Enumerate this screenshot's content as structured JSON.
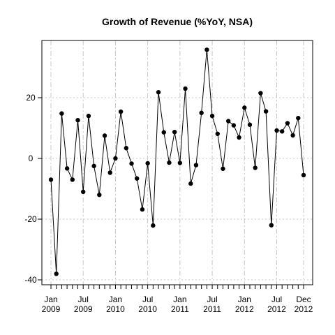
{
  "chart_data": {
    "type": "line",
    "title": "Growth of Revenue (%YoY, NSA)",
    "xlabel": "",
    "ylabel": "",
    "x": [
      "2009-01",
      "2009-02",
      "2009-03",
      "2009-04",
      "2009-05",
      "2009-06",
      "2009-07",
      "2009-08",
      "2009-09",
      "2009-10",
      "2009-11",
      "2009-12",
      "2010-01",
      "2010-02",
      "2010-03",
      "2010-04",
      "2010-05",
      "2010-06",
      "2010-07",
      "2010-08",
      "2010-09",
      "2010-10",
      "2010-11",
      "2010-12",
      "2011-01",
      "2011-02",
      "2011-03",
      "2011-04",
      "2011-05",
      "2011-06",
      "2011-07",
      "2011-08",
      "2011-09",
      "2011-10",
      "2011-11",
      "2011-12",
      "2012-01",
      "2012-02",
      "2012-03",
      "2012-04",
      "2012-05",
      "2012-06",
      "2012-07",
      "2012-08",
      "2012-09",
      "2012-10",
      "2012-11",
      "2012-12"
    ],
    "values": [
      -7,
      -38,
      14.8,
      -3.3,
      -7,
      12.6,
      -11,
      14,
      -2.5,
      -12,
      7.5,
      -4.7,
      0,
      15.4,
      3.4,
      -1.7,
      -6.6,
      -16.8,
      -1.6,
      -22.1,
      21.8,
      8.6,
      -1.4,
      8.7,
      -1.5,
      23,
      -8.3,
      -2.2,
      15,
      35.8,
      14,
      8.1,
      -3.4,
      12.3,
      10.9,
      6.9,
      16.7,
      11.1,
      -3.1,
      21.5,
      15.5,
      -22,
      9.2,
      8.9,
      11.6,
      7.6,
      13.3,
      -5.5
    ],
    "ylim": [
      -40,
      35
    ],
    "y_ticks": [
      -40,
      -20,
      0,
      20
    ],
    "x_ticks": [
      {
        "at": "2009-01",
        "line1": "Jan",
        "line2": "2009"
      },
      {
        "at": "2009-07",
        "line1": "Jul",
        "line2": "2009"
      },
      {
        "at": "2010-01",
        "line1": "Jan",
        "line2": "2010"
      },
      {
        "at": "2010-07",
        "line1": "Jul",
        "line2": "2010"
      },
      {
        "at": "2011-01",
        "line1": "Jan",
        "line2": "2011"
      },
      {
        "at": "2011-07",
        "line1": "Jul",
        "line2": "2011"
      },
      {
        "at": "2012-01",
        "line1": "Jan",
        "line2": "2012"
      },
      {
        "at": "2012-07",
        "line1": "Jul",
        "line2": "2012"
      },
      {
        "at": "2012-12",
        "line1": "Dec",
        "line2": "2012"
      }
    ],
    "grid": true,
    "legend": "none"
  }
}
